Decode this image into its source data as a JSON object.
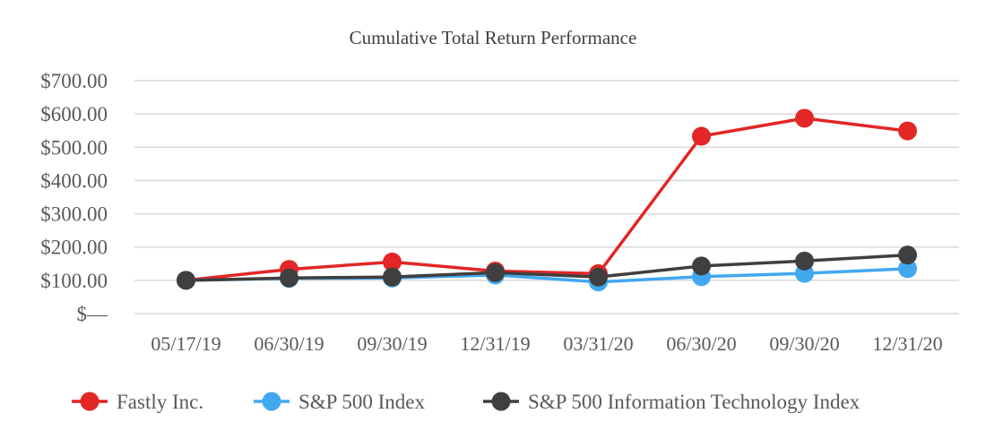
{
  "chart_data": {
    "type": "line",
    "title": "Cumulative Total Return Performance",
    "xlabel": "",
    "ylabel": "",
    "categories": [
      "05/17/19",
      "06/30/19",
      "09/30/19",
      "12/31/19",
      "03/31/20",
      "06/30/20",
      "09/30/20",
      "12/31/20"
    ],
    "y_ticks": [
      {
        "value": 0,
        "label": "$—"
      },
      {
        "value": 100,
        "label": "$100.00"
      },
      {
        "value": 200,
        "label": "$200.00"
      },
      {
        "value": 300,
        "label": "$300.00"
      },
      {
        "value": 400,
        "label": "$400.00"
      },
      {
        "value": 500,
        "label": "$500.00"
      },
      {
        "value": 600,
        "label": "$600.00"
      },
      {
        "value": 700,
        "label": "$700.00"
      }
    ],
    "ylim": [
      0,
      700
    ],
    "grid": true,
    "legend_position": "bottom",
    "series": [
      {
        "name": "Fastly Inc.",
        "color": "#e32626",
        "values": [
          100,
          133,
          155,
          128,
          120,
          533,
          587,
          549
        ]
      },
      {
        "name": "S&P 500 Index",
        "color": "#41a8f0",
        "values": [
          100,
          106,
          107,
          116,
          95,
          111,
          121,
          135
        ]
      },
      {
        "name": "S&P 500 Information Technology Index",
        "color": "#3f3f3f",
        "values": [
          100,
          107,
          110,
          123,
          110,
          143,
          158,
          176
        ]
      }
    ]
  }
}
